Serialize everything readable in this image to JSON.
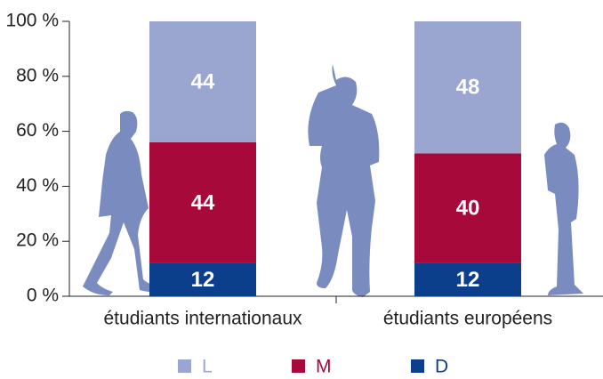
{
  "chart_data": {
    "type": "stacked_bar",
    "categories": [
      "étudiants internationaux",
      "étudiants européens"
    ],
    "series": [
      {
        "name": "D",
        "color": "#0b3f8c",
        "values": [
          12,
          12
        ]
      },
      {
        "name": "M",
        "color": "#a6093a",
        "values": [
          44,
          40
        ]
      },
      {
        "name": "L",
        "color": "#9aa5d0",
        "values": [
          44,
          48
        ]
      }
    ],
    "ylim": [
      0,
      100
    ],
    "yticks": [
      {
        "value": 0,
        "label": "0 %"
      },
      {
        "value": 20,
        "label": "20 %"
      },
      {
        "value": 40,
        "label": "40 %"
      },
      {
        "value": 60,
        "label": "60 %"
      },
      {
        "value": 80,
        "label": "80 %"
      },
      {
        "value": 100,
        "label": "100 %"
      }
    ]
  }
}
